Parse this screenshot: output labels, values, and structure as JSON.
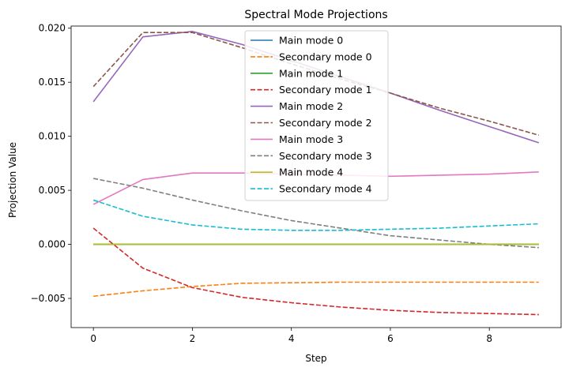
{
  "chart_data": {
    "type": "line",
    "title": "Spectral Mode Projections",
    "xlabel": "Step",
    "ylabel": "Projection Value",
    "xlim": [
      -0.45,
      9.45
    ],
    "ylim": [
      -0.0077,
      0.0202
    ],
    "xticks": [
      0,
      2,
      4,
      6,
      8
    ],
    "xtick_labels": [
      "0",
      "2",
      "4",
      "6",
      "8"
    ],
    "yticks": [
      -0.005,
      0.0,
      0.005,
      0.01,
      0.015,
      0.02
    ],
    "ytick_labels": [
      "−0.005",
      "0.000",
      "0.005",
      "0.010",
      "0.015",
      "0.020"
    ],
    "grid": false,
    "legend_position": "top-center",
    "x": [
      0,
      1,
      2,
      3,
      4,
      5,
      6,
      7,
      8,
      9
    ],
    "series": [
      {
        "name": "Main mode 0",
        "style": "solid",
        "color": "#1f77b4",
        "values": [
          0,
          0,
          0,
          0,
          0,
          0,
          0,
          0,
          0,
          0
        ]
      },
      {
        "name": "Secondary mode 0",
        "style": "dashed",
        "color": "#ff7f0e",
        "values": [
          -0.0048,
          -0.0043,
          -0.0039,
          -0.0036,
          -0.00355,
          -0.0035,
          -0.0035,
          -0.0035,
          -0.0035,
          -0.0035
        ]
      },
      {
        "name": "Main mode 1",
        "style": "solid",
        "color": "#2ca02c",
        "values": [
          0,
          0,
          0,
          0,
          0,
          0,
          0,
          0,
          0,
          0
        ]
      },
      {
        "name": "Secondary mode 1",
        "style": "dashed",
        "color": "#d62728",
        "values": [
          0.0015,
          -0.0022,
          -0.004,
          -0.0049,
          -0.0054,
          -0.0058,
          -0.0061,
          -0.0063,
          -0.0064,
          -0.0065
        ]
      },
      {
        "name": "Main mode 2",
        "style": "solid",
        "color": "#9467bd",
        "values": [
          0.0132,
          0.0192,
          0.0197,
          0.0185,
          0.017,
          0.0155,
          0.014,
          0.0124,
          0.0109,
          0.0094
        ]
      },
      {
        "name": "Secondary mode 2",
        "style": "dashed",
        "color": "#8c564b",
        "values": [
          0.0146,
          0.0196,
          0.0196,
          0.0182,
          0.0167,
          0.0153,
          0.014,
          0.0126,
          0.0114,
          0.0101
        ]
      },
      {
        "name": "Main mode 3",
        "style": "solid",
        "color": "#e377c2",
        "values": [
          0.0037,
          0.006,
          0.0066,
          0.0066,
          0.0065,
          0.0064,
          0.0063,
          0.0064,
          0.0065,
          0.0067
        ]
      },
      {
        "name": "Secondary mode 3",
        "style": "dashed",
        "color": "#7f7f7f",
        "values": [
          0.0061,
          0.0052,
          0.0041,
          0.0031,
          0.0022,
          0.0015,
          0.0008,
          0.0004,
          0.0,
          -0.0003
        ]
      },
      {
        "name": "Main mode 4",
        "style": "solid",
        "color": "#bcbd22",
        "values": [
          0,
          0,
          0,
          0,
          0,
          0,
          0,
          0,
          0,
          0
        ]
      },
      {
        "name": "Secondary mode 4",
        "style": "dashed",
        "color": "#17becf",
        "values": [
          0.0041,
          0.0026,
          0.0018,
          0.0014,
          0.0013,
          0.0013,
          0.0014,
          0.0015,
          0.0017,
          0.0019
        ]
      }
    ]
  }
}
